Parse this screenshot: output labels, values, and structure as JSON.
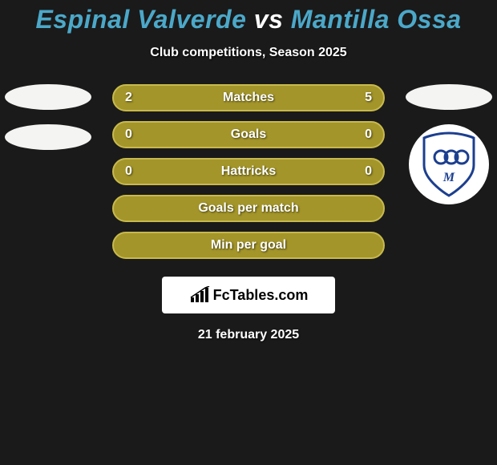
{
  "background_color": "#1a1a1a",
  "title": {
    "player1": "Espinal Valverde",
    "vs": "vs",
    "player2": "Mantilla Ossa",
    "player1_color": "#4ba8c9",
    "player2_color": "#4ba8c9",
    "vs_color": "#ffffff"
  },
  "subtitle": "Club competitions, Season 2025",
  "left_badges": [
    {
      "type": "oval",
      "bg": "#f4f5f2"
    },
    {
      "type": "oval",
      "bg": "#f4f5f2"
    }
  ],
  "right_badges": [
    {
      "type": "oval",
      "bg": "#f4f5f2"
    },
    {
      "type": "millonarios",
      "bg": "#ffffff",
      "accent": "#1c3f8f"
    }
  ],
  "stats": {
    "bar_color": "#a39529",
    "border_color": "#c7b94d",
    "rows": [
      {
        "label": "Matches",
        "left": "2",
        "right": "5"
      },
      {
        "label": "Goals",
        "left": "0",
        "right": "0"
      },
      {
        "label": "Hattricks",
        "left": "0",
        "right": "0"
      },
      {
        "label": "Goals per match",
        "left": "",
        "right": ""
      },
      {
        "label": "Min per goal",
        "left": "",
        "right": ""
      }
    ]
  },
  "watermark": {
    "icon": "chart-bar-icon",
    "text": "FcTables.com"
  },
  "date": "21 february 2025"
}
